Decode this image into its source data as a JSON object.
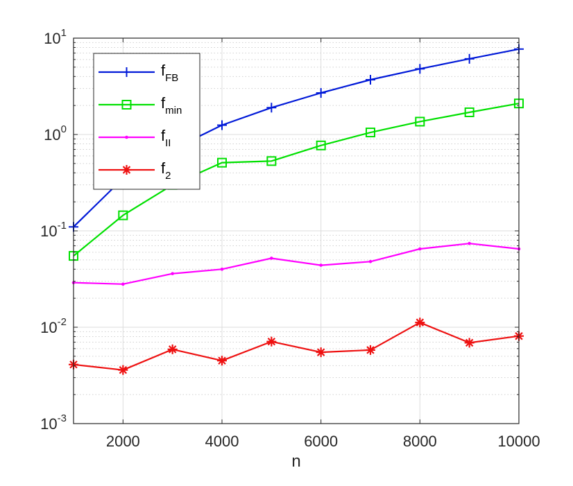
{
  "chart_data": {
    "type": "line",
    "xlabel": "n",
    "ylabel": "",
    "x_scale": "linear",
    "y_scale": "log",
    "xlim": [
      1000,
      10000
    ],
    "ylim": [
      0.001,
      10
    ],
    "x_ticks": [
      2000,
      4000,
      6000,
      8000,
      10000
    ],
    "x_tick_labels": [
      "2000",
      "4000",
      "6000",
      "8000",
      "10000"
    ],
    "y_ticks": [
      0.001,
      0.01,
      0.1,
      1,
      10
    ],
    "y_tick_labels": [
      {
        "base": "10",
        "exp": "-3"
      },
      {
        "base": "10",
        "exp": "-2"
      },
      {
        "base": "10",
        "exp": "-1"
      },
      {
        "base": "10",
        "exp": "0"
      },
      {
        "base": "10",
        "exp": "1"
      }
    ],
    "grid": true,
    "legend_position": "top-left",
    "x": [
      1000,
      2000,
      3000,
      4000,
      5000,
      6000,
      7000,
      8000,
      9000,
      10000
    ],
    "series": [
      {
        "name": "f",
        "sub": "FB",
        "color": "#0019d8",
        "marker": "plus",
        "values": [
          0.11,
          0.35,
          0.7,
          1.25,
          1.9,
          2.7,
          3.7,
          4.8,
          6.1,
          7.7
        ]
      },
      {
        "name": "f",
        "sub": "min",
        "color": "#00e000",
        "marker": "square",
        "values": [
          0.055,
          0.145,
          0.3,
          0.51,
          0.53,
          0.77,
          1.05,
          1.36,
          1.7,
          2.1
        ]
      },
      {
        "name": "f",
        "sub": "II",
        "color": "#ff00ff",
        "marker": "dot",
        "values": [
          0.029,
          0.028,
          0.036,
          0.04,
          0.052,
          0.044,
          0.048,
          0.065,
          0.074,
          0.065
        ]
      },
      {
        "name": "f",
        "sub": "2",
        "color": "#ee1111",
        "marker": "asterisk",
        "values": [
          0.0041,
          0.0036,
          0.0059,
          0.0045,
          0.0071,
          0.0055,
          0.0058,
          0.0112,
          0.0069,
          0.0081
        ]
      }
    ]
  }
}
